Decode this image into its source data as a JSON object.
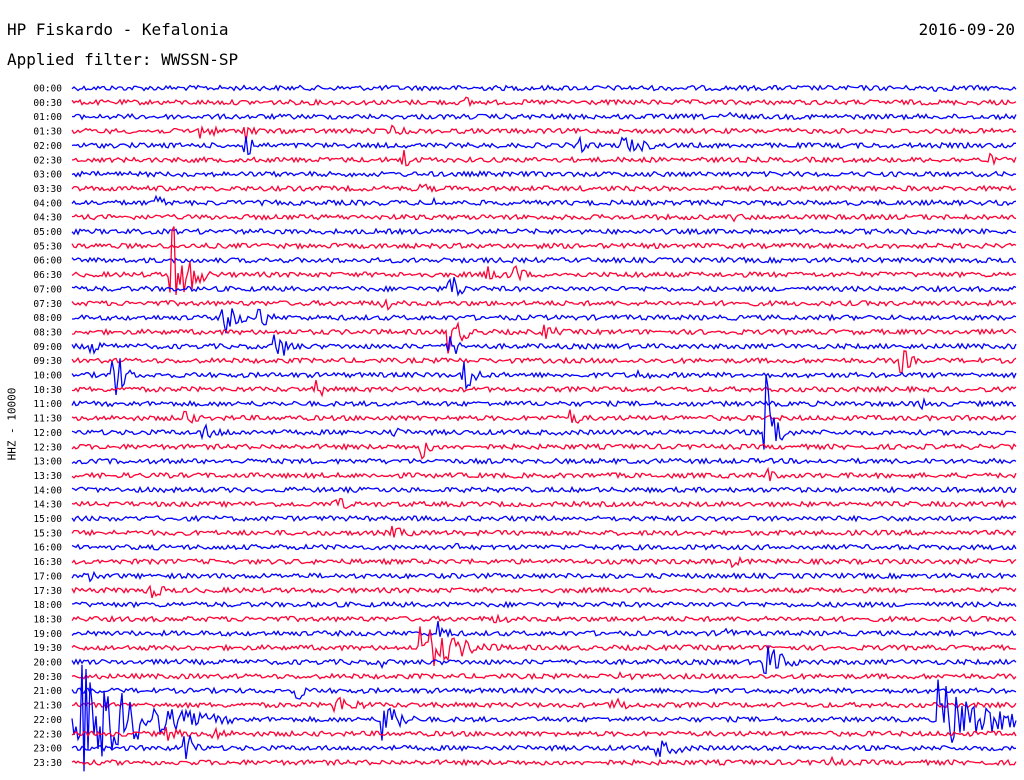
{
  "header": {
    "station": "HP Fiskardo - Kefalonia",
    "date": "2016-09-20",
    "filter_label": "Applied filter: WWSSN-SP"
  },
  "chart_data": {
    "type": "helicorder",
    "channel_label": "HHZ - 10000",
    "colors": {
      "line_a": "#0000ff",
      "line_b": "#ff0033"
    },
    "time_labels": [
      "00:00",
      "00:30",
      "01:00",
      "01:30",
      "02:00",
      "02:30",
      "03:00",
      "03:30",
      "04:00",
      "04:30",
      "05:00",
      "05:30",
      "06:00",
      "06:30",
      "07:00",
      "07:30",
      "08:00",
      "08:30",
      "09:00",
      "09:30",
      "10:00",
      "10:30",
      "11:00",
      "11:30",
      "12:00",
      "12:30",
      "13:00",
      "13:30",
      "14:00",
      "14:30",
      "15:00",
      "15:30",
      "16:00",
      "16:30",
      "17:00",
      "17:30",
      "18:00",
      "18:30",
      "19:00",
      "19:30",
      "20:00",
      "20:30",
      "21:00",
      "21:30",
      "22:00",
      "22:30",
      "23:00",
      "23:30"
    ],
    "noise_level": 2.5,
    "events": [
      {
        "row": 0,
        "t": 0.91,
        "amp": 6,
        "dur": 0.01
      },
      {
        "row": 1,
        "t": 0.42,
        "amp": 6,
        "dur": 0.01
      },
      {
        "row": 2,
        "t": 0.7,
        "amp": 7,
        "dur": 0.01
      },
      {
        "row": 3,
        "t": 0.135,
        "amp": 9,
        "dur": 0.02
      },
      {
        "row": 3,
        "t": 0.185,
        "amp": 12,
        "dur": 0.01
      },
      {
        "row": 3,
        "t": 0.34,
        "amp": 6,
        "dur": 0.02
      },
      {
        "row": 4,
        "t": 0.185,
        "amp": 16,
        "dur": 0.01
      },
      {
        "row": 4,
        "t": 0.535,
        "amp": 12,
        "dur": 0.01
      },
      {
        "row": 4,
        "t": 0.585,
        "amp": 10,
        "dur": 0.03
      },
      {
        "row": 5,
        "t": 0.35,
        "amp": 14,
        "dur": 0.01
      },
      {
        "row": 5,
        "t": 0.97,
        "amp": 8,
        "dur": 0.01
      },
      {
        "row": 7,
        "t": 0.37,
        "amp": 6,
        "dur": 0.02
      },
      {
        "row": 8,
        "t": 0.09,
        "amp": 9,
        "dur": 0.01
      },
      {
        "row": 8,
        "t": 0.38,
        "amp": 6,
        "dur": 0.02
      },
      {
        "row": 9,
        "t": 0.7,
        "amp": 5,
        "dur": 0.02
      },
      {
        "row": 13,
        "t": 0.105,
        "amp": 70,
        "dur": 0.015
      },
      {
        "row": 13,
        "t": 0.44,
        "amp": 10,
        "dur": 0.02
      },
      {
        "row": 13,
        "t": 0.47,
        "amp": 12,
        "dur": 0.01
      },
      {
        "row": 13,
        "t": 0.595,
        "amp": 8,
        "dur": 0.01
      },
      {
        "row": 14,
        "t": 0.4,
        "amp": 22,
        "dur": 0.01
      },
      {
        "row": 15,
        "t": 0.33,
        "amp": 10,
        "dur": 0.01
      },
      {
        "row": 16,
        "t": 0.16,
        "amp": 20,
        "dur": 0.015
      },
      {
        "row": 16,
        "t": 0.2,
        "amp": 14,
        "dur": 0.01
      },
      {
        "row": 17,
        "t": 0.4,
        "amp": 22,
        "dur": 0.015
      },
      {
        "row": 17,
        "t": 0.5,
        "amp": 8,
        "dur": 0.02
      },
      {
        "row": 18,
        "t": 0.02,
        "amp": 12,
        "dur": 0.01
      },
      {
        "row": 18,
        "t": 0.215,
        "amp": 18,
        "dur": 0.015
      },
      {
        "row": 18,
        "t": 0.4,
        "amp": 16,
        "dur": 0.01
      },
      {
        "row": 19,
        "t": 0.88,
        "amp": 14,
        "dur": 0.01
      },
      {
        "row": 20,
        "t": 0.045,
        "amp": 32,
        "dur": 0.01
      },
      {
        "row": 20,
        "t": 0.415,
        "amp": 28,
        "dur": 0.01
      },
      {
        "row": 20,
        "t": 0.6,
        "amp": 6,
        "dur": 0.02
      },
      {
        "row": 21,
        "t": 0.26,
        "amp": 10,
        "dur": 0.01
      },
      {
        "row": 22,
        "t": 0.9,
        "amp": 8,
        "dur": 0.01
      },
      {
        "row": 23,
        "t": 0.12,
        "amp": 12,
        "dur": 0.01
      },
      {
        "row": 23,
        "t": 0.53,
        "amp": 10,
        "dur": 0.01
      },
      {
        "row": 24,
        "t": 0.14,
        "amp": 8,
        "dur": 0.03
      },
      {
        "row": 24,
        "t": 0.34,
        "amp": 6,
        "dur": 0.02
      },
      {
        "row": 24,
        "t": 0.735,
        "amp": 60,
        "dur": 0.01
      },
      {
        "row": 25,
        "t": 0.37,
        "amp": 14,
        "dur": 0.01
      },
      {
        "row": 27,
        "t": 0.735,
        "amp": 10,
        "dur": 0.01
      },
      {
        "row": 29,
        "t": 0.28,
        "amp": 12,
        "dur": 0.01
      },
      {
        "row": 29,
        "t": 0.975,
        "amp": 10,
        "dur": 0.01
      },
      {
        "row": 31,
        "t": 0.34,
        "amp": 8,
        "dur": 0.02
      },
      {
        "row": 32,
        "t": 0.4,
        "amp": 6,
        "dur": 0.02
      },
      {
        "row": 33,
        "t": 0.7,
        "amp": 6,
        "dur": 0.02
      },
      {
        "row": 34,
        "t": 0.02,
        "amp": 8,
        "dur": 0.01
      },
      {
        "row": 35,
        "t": 0.08,
        "amp": 10,
        "dur": 0.02
      },
      {
        "row": 37,
        "t": 0.45,
        "amp": 6,
        "dur": 0.02
      },
      {
        "row": 38,
        "t": 0.39,
        "amp": 14,
        "dur": 0.01
      },
      {
        "row": 38,
        "t": 0.69,
        "amp": 10,
        "dur": 0.01
      },
      {
        "row": 39,
        "t": 0.37,
        "amp": 26,
        "dur": 0.04
      },
      {
        "row": 40,
        "t": 0.735,
        "amp": 20,
        "dur": 0.02
      },
      {
        "row": 40,
        "t": 0.33,
        "amp": 6,
        "dur": 0.01
      },
      {
        "row": 41,
        "t": 0.58,
        "amp": 12,
        "dur": 0.01
      },
      {
        "row": 42,
        "t": 0.24,
        "amp": 10,
        "dur": 0.01
      },
      {
        "row": 43,
        "t": 0.28,
        "amp": 10,
        "dur": 0.03
      },
      {
        "row": 43,
        "t": 0.575,
        "amp": 10,
        "dur": 0.015
      },
      {
        "row": 44,
        "t": 0.005,
        "amp": 60,
        "dur": 0.06
      },
      {
        "row": 44,
        "t": 0.33,
        "amp": 30,
        "dur": 0.015
      },
      {
        "row": 44,
        "t": 0.92,
        "amp": 40,
        "dur": 0.05
      },
      {
        "row": 45,
        "t": 0.1,
        "amp": 8,
        "dur": 0.02
      },
      {
        "row": 45,
        "t": 0.15,
        "amp": 8,
        "dur": 0.02
      },
      {
        "row": 46,
        "t": 0.12,
        "amp": 22,
        "dur": 0.01
      },
      {
        "row": 46,
        "t": 0.62,
        "amp": 10,
        "dur": 0.03
      },
      {
        "row": 47,
        "t": 0.8,
        "amp": 8,
        "dur": 0.02
      }
    ]
  }
}
